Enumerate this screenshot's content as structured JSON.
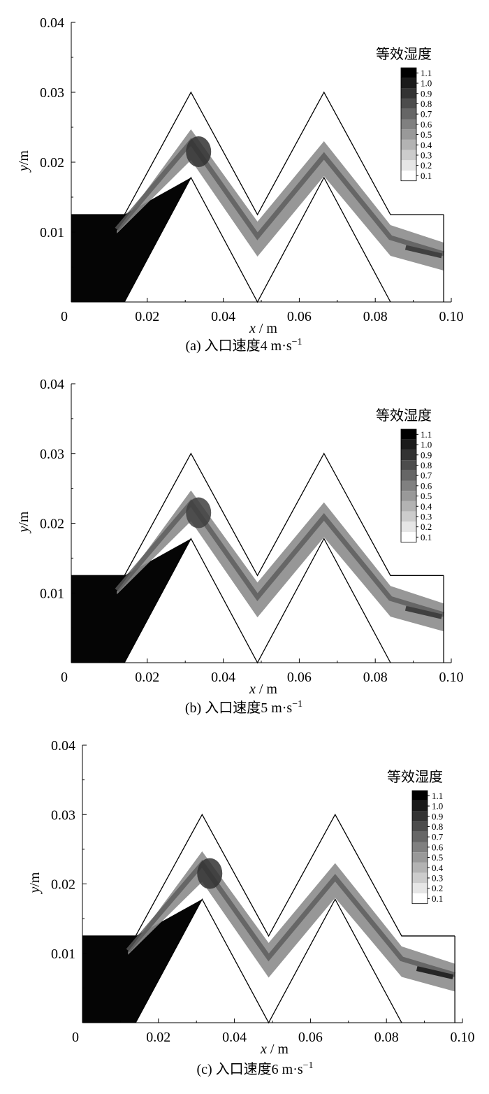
{
  "chart_data": [
    {
      "type": "heatmap",
      "caption_prefix": "(a) 入口速度4 m·s",
      "caption_sup": "−1",
      "xlabel_var": "x",
      "xlabel_unit": " / m",
      "ylabel_var": "y",
      "ylabel_unit": "/m",
      "xlim": [
        0,
        0.1
      ],
      "ylim": [
        0,
        0.04
      ],
      "xticks": [
        "0",
        "0.02",
        "0.04",
        "0.06",
        "0.08",
        "0.10"
      ],
      "yticks": [
        "0.01",
        "0.02",
        "0.03",
        "0.04"
      ],
      "legend_title": "等效湿度",
      "legend_levels": [
        "1.1",
        "1.0",
        "0.9",
        "0.8",
        "0.7",
        "0.6",
        "0.5",
        "0.4",
        "0.3",
        "0.2",
        "0.1"
      ],
      "channel_outline": {
        "top_wall": [
          [
            0.0,
            0.0125
          ],
          [
            0.014,
            0.0125
          ],
          [
            0.0315,
            0.03
          ],
          [
            0.049,
            0.0125
          ],
          [
            0.0665,
            0.03
          ],
          [
            0.084,
            0.0125
          ],
          [
            0.098,
            0.0125
          ]
        ],
        "bottom_wall": [
          [
            0.014,
            0.0
          ],
          [
            0.0315,
            0.0178
          ],
          [
            0.049,
            0.0
          ],
          [
            0.0665,
            0.0178
          ],
          [
            0.084,
            0.0
          ]
        ],
        "outlet_edge": [
          [
            0.098,
            0.0125
          ],
          [
            0.098,
            0.0
          ]
        ]
      },
      "band_peak_value": 0.9,
      "band_outlet_value": 0.85
    },
    {
      "type": "heatmap",
      "caption_prefix": "(b) 入口速度5 m·s",
      "caption_sup": "−1",
      "xlabel_var": "x",
      "xlabel_unit": " / m",
      "ylabel_var": "y",
      "ylabel_unit": "/m",
      "xlim": [
        0,
        0.1
      ],
      "ylim": [
        0,
        0.04
      ],
      "xticks": [
        "0",
        "0.02",
        "0.04",
        "0.06",
        "0.08",
        "0.10"
      ],
      "yticks": [
        "0.01",
        "0.02",
        "0.03",
        "0.04"
      ],
      "legend_title": "等效湿度",
      "legend_levels": [
        "1.1",
        "1.0",
        "0.9",
        "0.8",
        "0.7",
        "0.6",
        "0.5",
        "0.4",
        "0.3",
        "0.2",
        "0.1"
      ],
      "channel_outline": {
        "top_wall": [
          [
            0.0,
            0.0125
          ],
          [
            0.014,
            0.0125
          ],
          [
            0.0315,
            0.03
          ],
          [
            0.049,
            0.0125
          ],
          [
            0.0665,
            0.03
          ],
          [
            0.084,
            0.0125
          ],
          [
            0.098,
            0.0125
          ]
        ],
        "bottom_wall": [
          [
            0.014,
            0.0
          ],
          [
            0.0315,
            0.0178
          ],
          [
            0.049,
            0.0
          ],
          [
            0.0665,
            0.0178
          ],
          [
            0.084,
            0.0
          ]
        ],
        "outlet_edge": [
          [
            0.098,
            0.0125
          ],
          [
            0.098,
            0.0
          ]
        ]
      },
      "band_peak_value": 0.85,
      "band_outlet_value": 0.85
    },
    {
      "type": "heatmap",
      "caption_prefix": "(c) 入口速度6 m·s",
      "caption_sup": "−1",
      "xlabel_var": "x",
      "xlabel_unit": " / m",
      "ylabel_var": "y",
      "ylabel_unit": "/m",
      "xlim": [
        0,
        0.1
      ],
      "ylim": [
        0,
        0.04
      ],
      "xticks": [
        "0",
        "0.02",
        "0.04",
        "0.06",
        "0.08",
        "0.10"
      ],
      "yticks": [
        "0.01",
        "0.02",
        "0.03",
        "0.04"
      ],
      "legend_title": "等效湿度",
      "legend_levels": [
        "1.1",
        "1.0",
        "0.9",
        "0.8",
        "0.7",
        "0.6",
        "0.5",
        "0.4",
        "0.3",
        "0.2",
        "0.1"
      ],
      "channel_outline": {
        "top_wall": [
          [
            0.0,
            0.0125
          ],
          [
            0.014,
            0.0125
          ],
          [
            0.0315,
            0.03
          ],
          [
            0.049,
            0.0125
          ],
          [
            0.0665,
            0.03
          ],
          [
            0.084,
            0.0125
          ],
          [
            0.098,
            0.0125
          ]
        ],
        "bottom_wall": [
          [
            0.014,
            0.0
          ],
          [
            0.0315,
            0.0178
          ],
          [
            0.049,
            0.0
          ],
          [
            0.0665,
            0.0178
          ],
          [
            0.084,
            0.0
          ]
        ],
        "outlet_edge": [
          [
            0.098,
            0.0125
          ],
          [
            0.098,
            0.0
          ]
        ]
      },
      "band_peak_value": 0.9,
      "band_outlet_value": 0.95
    }
  ]
}
